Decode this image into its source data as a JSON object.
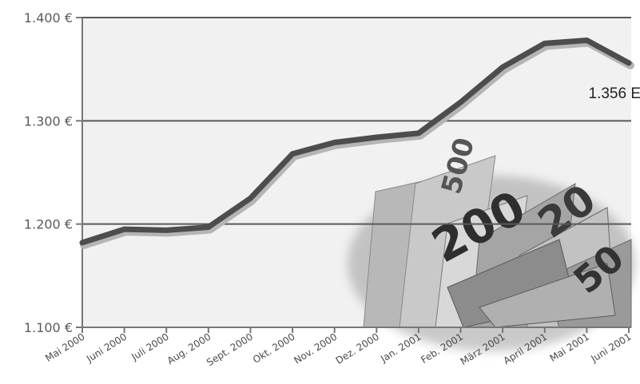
{
  "chart_data": {
    "type": "line",
    "title": "",
    "xlabel": "",
    "ylabel": "",
    "categories": [
      "Mai 2000",
      "Juni 2000",
      "Juli 2000",
      "Aug. 2000",
      "Sept. 2000",
      "Okt. 2000",
      "Nov. 2000",
      "Dez. 2000",
      "Jan. 2001",
      "Feb. 2001",
      "März 2001",
      "April 2001",
      "Mai 2001",
      "Juni 2001"
    ],
    "series": [
      {
        "values": [
          1182,
          1195,
          1194,
          1197,
          1225,
          1268,
          1279,
          1284,
          1288,
          1318,
          1352,
          1375,
          1378,
          1356
        ]
      }
    ],
    "ylim": [
      1100,
      1400
    ],
    "yticks": [
      1100,
      1200,
      1300,
      1400
    ],
    "ytick_labels": [
      "1.100 €",
      "1.200 €",
      "1.300 €",
      "1.400 €"
    ],
    "grid": true,
    "annotation": {
      "text": "1.356 E",
      "category": "Juni 2001"
    },
    "colors": {
      "line": "#4d4d4d",
      "plot_bg": "#f1f1f1",
      "grid": "#5a5a5a"
    },
    "decoration": "euro-banknotes-image"
  }
}
